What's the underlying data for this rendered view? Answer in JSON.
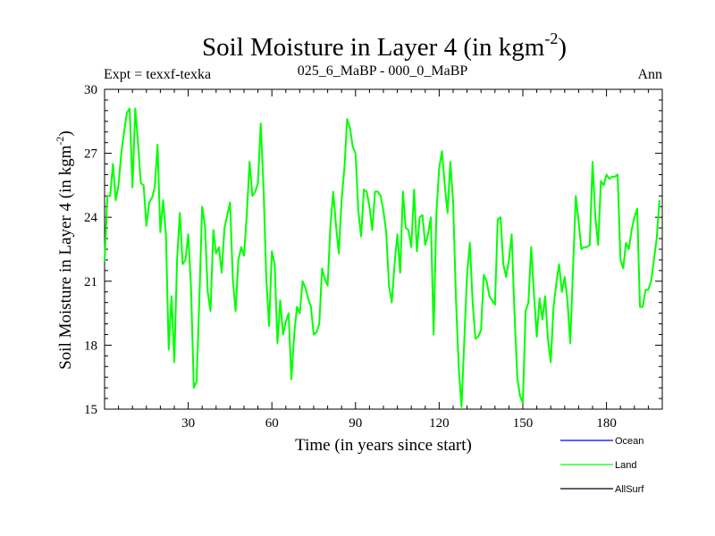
{
  "chart_data": {
    "type": "line",
    "title": "Soil Moisture in Layer 4 (in kgm",
    "title_sup": "-2",
    "title_tail": ")",
    "subtitle_left": "Expt = texxf-texka",
    "subtitle_center": "025_6_MaBP - 000_0_MaBP",
    "subtitle_right": "Ann",
    "xlabel": "Time (in years since start)",
    "ylabel": "Soil Moisture in Layer 4 (in kgm",
    "ylabel_sup": "-2",
    "ylabel_tail": ")",
    "xlim": [
      0,
      200
    ],
    "ylim": [
      15,
      30
    ],
    "xticks": [
      30,
      60,
      90,
      120,
      150,
      180
    ],
    "yticks": [
      15,
      18,
      21,
      24,
      27,
      30
    ],
    "legend": [
      {
        "name": "Ocean",
        "color": "#0000ff"
      },
      {
        "name": "Land",
        "color": "#00ff00"
      },
      {
        "name": "AllSurf",
        "color": "#000000"
      }
    ],
    "series": [
      {
        "name": "Land",
        "color": "#00ff00",
        "x_start": 0,
        "x_step": 1,
        "values": [
          21.9,
          25.0,
          25.0,
          26.5,
          24.8,
          25.5,
          27.0,
          28.0,
          28.9,
          29.1,
          25.4,
          29.1,
          27.5,
          25.6,
          25.5,
          23.6,
          24.7,
          24.9,
          25.4,
          27.4,
          23.3,
          24.8,
          23.2,
          17.8,
          20.3,
          17.2,
          22.0,
          24.2,
          21.8,
          22.0,
          23.2,
          20.7,
          16.0,
          16.3,
          20.2,
          24.5,
          23.6,
          20.5,
          19.6,
          23.4,
          22.3,
          22.6,
          21.4,
          23.5,
          24.1,
          24.7,
          21.1,
          19.6,
          22.0,
          22.6,
          22.2,
          24.1,
          26.6,
          25.0,
          25.2,
          25.6,
          28.4,
          25.4,
          21.1,
          18.9,
          22.4,
          21.8,
          18.1,
          20.1,
          18.5,
          19.1,
          19.5,
          16.4,
          18.5,
          19.8,
          19.5,
          21.0,
          20.7,
          20.2,
          19.8,
          18.5,
          18.6,
          19.0,
          21.6,
          21.1,
          20.8,
          23.6,
          25.2,
          23.6,
          22.3,
          24.8,
          26.3,
          28.6,
          28.2,
          27.3,
          27.0,
          24.3,
          23.1,
          25.3,
          25.2,
          24.5,
          23.4,
          25.2,
          25.2,
          25.0,
          24.3,
          23.3,
          20.8,
          20.0,
          21.8,
          23.2,
          21.4,
          25.2,
          23.5,
          23.4,
          22.6,
          25.3,
          22.4,
          24.0,
          24.1,
          22.7,
          23.2,
          24.0,
          18.5,
          24.2,
          26.3,
          27.1,
          25.5,
          24.2,
          26.6,
          24.7,
          20.2,
          17.0,
          15.1,
          18.2,
          21.3,
          22.8,
          20.0,
          18.3,
          18.4,
          18.7,
          21.3,
          21.0,
          20.3,
          20.1,
          19.9,
          23.9,
          24.0,
          21.8,
          21.2,
          22.0,
          23.2,
          19.5,
          16.5,
          15.6,
          15.3,
          19.6,
          20.0,
          22.6,
          20.4,
          18.4,
          20.2,
          19.2,
          20.3,
          18.3,
          17.2,
          19.8,
          20.9,
          21.8,
          20.5,
          21.2,
          20.1,
          18.1,
          21.6,
          25.0,
          23.8,
          22.5,
          22.6,
          22.6,
          22.7,
          26.6,
          24.0,
          22.7,
          25.7,
          25.5,
          26.0,
          25.8,
          25.9,
          25.9,
          26.0,
          22.0,
          21.6,
          22.8,
          22.5,
          23.4,
          24.0,
          24.4,
          19.8,
          19.8,
          20.6,
          20.6,
          21.0,
          22.0,
          23.0,
          24.8
        ]
      }
    ]
  }
}
